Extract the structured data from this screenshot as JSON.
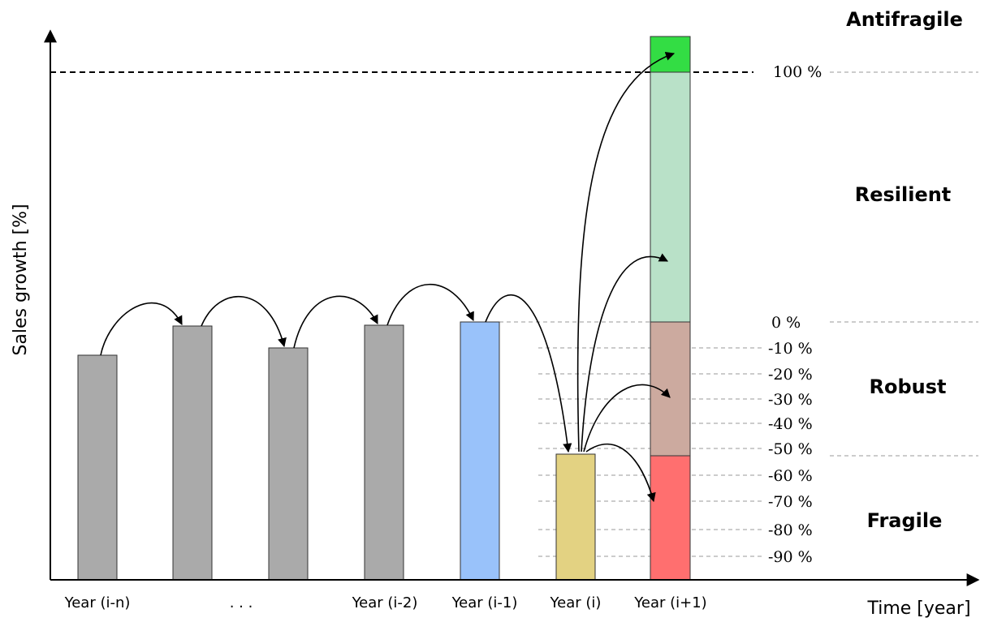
{
  "axes": {
    "y_label": "Sales growth [%]",
    "x_label": "Time [year]"
  },
  "regions": {
    "antifragile": "Antifragile",
    "resilient": "Resilient",
    "robust": "Robust",
    "fragile": "Fragile"
  },
  "percent_labels": [
    "100 %",
    "0 %",
    "-10 %",
    "-20 %",
    "-30 %",
    "-40 %",
    "-50 %",
    "-60 %",
    "-70 %",
    "-80 %",
    "-90 %"
  ],
  "x_labels": [
    "Year (i-n)",
    ". . .",
    "Year (i-2)",
    "Year (i-1)",
    "Year (i)",
    "Year (i+1)"
  ],
  "colors": {
    "history_bar": "#aaaaaa",
    "previous_year_bar": "#99c2fa",
    "current_year_bar": "#e3d282",
    "antifragile_band": "#33dd44",
    "resilient_band": "#b9e1c8",
    "robust_band": "#ccaa9f",
    "fragile_band": "#ff6f6f"
  }
}
